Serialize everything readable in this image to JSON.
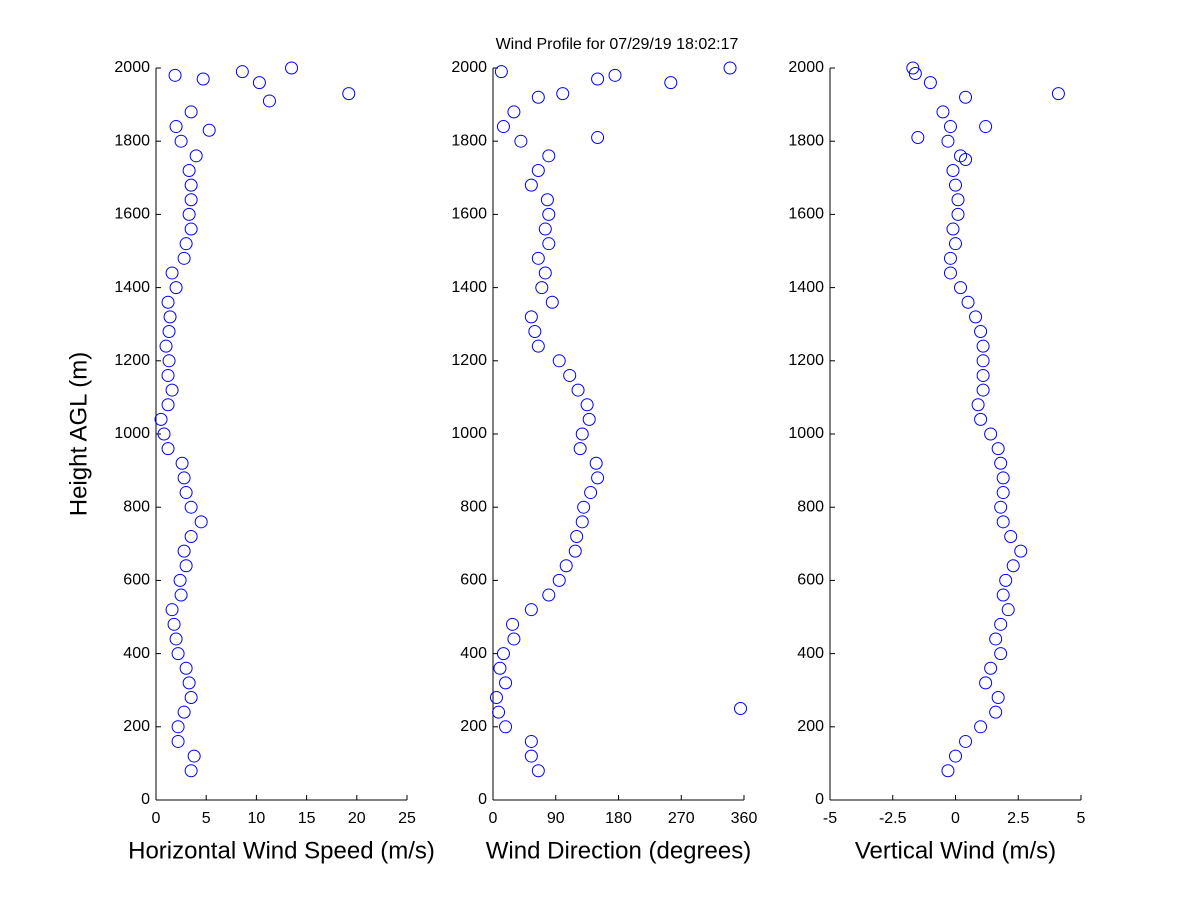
{
  "chart_data": [
    {
      "type": "scatter",
      "title": "Wind Profile for  07/29/19 18:02:17",
      "xlabel": "Horizontal Wind Speed (m/s)",
      "ylabel": "Height AGL (m)",
      "xlim": [
        0,
        25
      ],
      "xticks": [
        0,
        5,
        10,
        15,
        20,
        25
      ],
      "ylim": [
        0,
        2000
      ],
      "yticks": [
        0,
        200,
        400,
        600,
        800,
        1000,
        1200,
        1400,
        1600,
        1800,
        2000
      ],
      "series": [
        {
          "color": "#0000ff",
          "x": [
            3.5,
            3.8,
            2.2,
            2.2,
            2.8,
            3.5,
            3.3,
            3.0,
            2.2,
            2.0,
            1.8,
            1.6,
            2.5,
            2.4,
            3.0,
            2.8,
            3.5,
            4.5,
            3.5,
            3.0,
            2.8,
            2.6,
            1.2,
            0.8,
            0.5,
            1.2,
            1.6,
            1.2,
            1.3,
            1.0,
            1.3,
            1.4,
            1.2,
            2.0,
            1.6,
            2.8,
            3.0,
            3.5,
            3.3,
            3.5,
            3.5,
            3.3,
            4.0,
            2.5,
            2.0,
            3.5,
            19.2,
            10.3,
            13.5,
            8.6,
            11.3,
            4.7,
            5.3,
            1.9
          ],
          "y": [
            80,
            120,
            160,
            200,
            240,
            280,
            320,
            360,
            400,
            440,
            480,
            520,
            560,
            600,
            640,
            680,
            720,
            760,
            800,
            840,
            880,
            920,
            960,
            1000,
            1040,
            1080,
            1120,
            1160,
            1200,
            1240,
            1280,
            1320,
            1360,
            1400,
            1440,
            1480,
            1520,
            1560,
            1600,
            1640,
            1680,
            1720,
            1760,
            1800,
            1840,
            1880,
            1930,
            1960,
            2000,
            1990,
            1910,
            1970,
            1830,
            1980
          ]
        }
      ]
    },
    {
      "type": "scatter",
      "xlabel": "Wind Direction (degrees)",
      "xlim": [
        0,
        360
      ],
      "xticks": [
        0,
        90,
        180,
        270,
        360
      ],
      "ylim": [
        0,
        2000
      ],
      "yticks": [
        0,
        200,
        400,
        600,
        800,
        1000,
        1200,
        1400,
        1600,
        1800,
        2000
      ],
      "series": [
        {
          "color": "#0000ff",
          "x": [
            65,
            55,
            55,
            18,
            8,
            5,
            18,
            10,
            15,
            30,
            28,
            55,
            80,
            95,
            105,
            118,
            120,
            128,
            130,
            140,
            150,
            148,
            125,
            128,
            138,
            135,
            122,
            110,
            95,
            65,
            60,
            55,
            85,
            70,
            75,
            65,
            80,
            75,
            80,
            78,
            55,
            65,
            80,
            40,
            15,
            30,
            65,
            255,
            340,
            355,
            150,
            175,
            100,
            12,
            150
          ],
          "y": [
            80,
            120,
            160,
            200,
            240,
            280,
            320,
            360,
            400,
            440,
            480,
            520,
            560,
            600,
            640,
            680,
            720,
            760,
            800,
            840,
            880,
            920,
            960,
            1000,
            1040,
            1080,
            1120,
            1160,
            1200,
            1240,
            1280,
            1320,
            1360,
            1400,
            1440,
            1480,
            1520,
            1560,
            1600,
            1640,
            1680,
            1720,
            1760,
            1800,
            1840,
            1880,
            1920,
            1960,
            2000,
            250,
            1970,
            1980,
            1930,
            1990,
            1810
          ]
        }
      ]
    },
    {
      "type": "scatter",
      "xlabel": "Vertical Wind (m/s)",
      "xlim": [
        -5,
        5
      ],
      "xticks": [
        -5,
        -2.5,
        0,
        2.5,
        5
      ],
      "ylim": [
        0,
        2000
      ],
      "yticks": [
        0,
        200,
        400,
        600,
        800,
        1000,
        1200,
        1400,
        1600,
        1800,
        2000
      ],
      "series": [
        {
          "color": "#0000ff",
          "x": [
            -0.3,
            0,
            0.4,
            1.0,
            1.6,
            1.7,
            1.2,
            1.4,
            1.8,
            1.6,
            1.8,
            2.1,
            1.9,
            2.0,
            2.3,
            2.6,
            2.2,
            1.9,
            1.8,
            1.9,
            1.9,
            1.8,
            1.7,
            1.4,
            1.0,
            0.9,
            1.1,
            1.1,
            1.1,
            1.1,
            1.0,
            0.8,
            0.5,
            0.2,
            -0.2,
            -0.2,
            0,
            -0.1,
            0.1,
            0.1,
            0,
            -0.1,
            0.2,
            -0.3,
            -0.2,
            -0.5,
            0.4,
            -1.0,
            -1.7,
            4.1,
            -1.5,
            1.2,
            0.4,
            -1.6
          ],
          "y": [
            80,
            120,
            160,
            200,
            240,
            280,
            320,
            360,
            400,
            440,
            480,
            520,
            560,
            600,
            640,
            680,
            720,
            760,
            800,
            840,
            880,
            920,
            960,
            1000,
            1040,
            1080,
            1120,
            1160,
            1200,
            1240,
            1280,
            1320,
            1360,
            1400,
            1440,
            1480,
            1520,
            1560,
            1600,
            1640,
            1680,
            1720,
            1760,
            1800,
            1840,
            1880,
            1920,
            1960,
            2000,
            1930,
            1810,
            1840,
            1750,
            1985
          ]
        }
      ]
    }
  ]
}
